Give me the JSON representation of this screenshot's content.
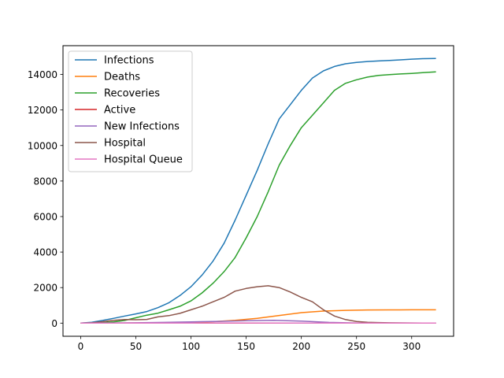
{
  "chart_data": {
    "type": "line",
    "title": "",
    "xlabel": "",
    "ylabel": "",
    "xlim": [
      -16,
      338
    ],
    "ylim": [
      -740,
      15620
    ],
    "xticks": [
      0,
      50,
      100,
      150,
      200,
      250,
      300
    ],
    "yticks": [
      0,
      2000,
      4000,
      6000,
      8000,
      10000,
      12000,
      14000
    ],
    "grid": false,
    "legend_position": "top-left",
    "series": [
      {
        "name": "Infections",
        "color": "#1f77b4",
        "x": [
          0,
          10,
          20,
          30,
          40,
          50,
          60,
          70,
          80,
          90,
          100,
          110,
          120,
          130,
          140,
          150,
          160,
          170,
          180,
          190,
          200,
          210,
          220,
          230,
          240,
          250,
          260,
          270,
          280,
          290,
          300,
          310,
          322
        ],
        "y": [
          0,
          50,
          150,
          270,
          400,
          520,
          650,
          870,
          1150,
          1550,
          2050,
          2700,
          3500,
          4500,
          5800,
          7200,
          8600,
          10100,
          11500,
          12300,
          13100,
          13800,
          14200,
          14450,
          14600,
          14680,
          14730,
          14760,
          14790,
          14820,
          14860,
          14890,
          14900
        ]
      },
      {
        "name": "Deaths",
        "color": "#ff7f0e",
        "x": [
          0,
          50,
          100,
          120,
          140,
          160,
          180,
          200,
          220,
          240,
          260,
          280,
          300,
          322
        ],
        "y": [
          0,
          10,
          40,
          80,
          160,
          270,
          430,
          590,
          680,
          720,
          740,
          745,
          748,
          750
        ]
      },
      {
        "name": "Recoveries",
        "color": "#2ca02c",
        "x": [
          0,
          10,
          20,
          30,
          40,
          50,
          60,
          70,
          80,
          90,
          100,
          110,
          120,
          130,
          140,
          150,
          160,
          170,
          180,
          190,
          200,
          210,
          220,
          230,
          240,
          250,
          260,
          270,
          280,
          290,
          300,
          310,
          322
        ],
        "y": [
          0,
          10,
          30,
          70,
          150,
          300,
          450,
          560,
          750,
          950,
          1250,
          1700,
          2250,
          2900,
          3700,
          4800,
          6000,
          7400,
          8900,
          10000,
          11000,
          11700,
          12400,
          13100,
          13500,
          13700,
          13850,
          13950,
          13990,
          14030,
          14060,
          14100,
          14150
        ]
      },
      {
        "name": "Active",
        "color": "#d62728",
        "x": [
          0,
          50,
          100,
          150,
          200,
          250,
          300,
          322
        ],
        "y": [
          0,
          0,
          0,
          0,
          0,
          0,
          0,
          0
        ]
      },
      {
        "name": "New Infections",
        "color": "#9467bd",
        "x": [
          0,
          25,
          50,
          75,
          100,
          125,
          150,
          175,
          200,
          225,
          250,
          275,
          300,
          322
        ],
        "y": [
          0,
          10,
          20,
          40,
          70,
          100,
          140,
          160,
          110,
          40,
          10,
          5,
          2,
          0
        ]
      },
      {
        "name": "Hospital",
        "color": "#8c564b",
        "x": [
          0,
          10,
          20,
          30,
          40,
          50,
          60,
          70,
          80,
          90,
          100,
          110,
          120,
          130,
          140,
          150,
          160,
          170,
          180,
          190,
          200,
          210,
          220,
          230,
          240,
          250,
          260,
          270,
          280,
          290,
          300,
          310,
          322
        ],
        "y": [
          0,
          20,
          80,
          160,
          200,
          190,
          210,
          350,
          420,
          550,
          750,
          950,
          1200,
          1450,
          1800,
          1950,
          2050,
          2100,
          2000,
          1750,
          1450,
          1200,
          750,
          400,
          200,
          90,
          50,
          30,
          20,
          15,
          10,
          5,
          0
        ]
      },
      {
        "name": "Hospital Queue",
        "color": "#e377c2",
        "x": [
          0,
          50,
          100,
          150,
          200,
          250,
          300,
          322
        ],
        "y": [
          0,
          0,
          5,
          10,
          5,
          0,
          0,
          0
        ]
      }
    ]
  }
}
